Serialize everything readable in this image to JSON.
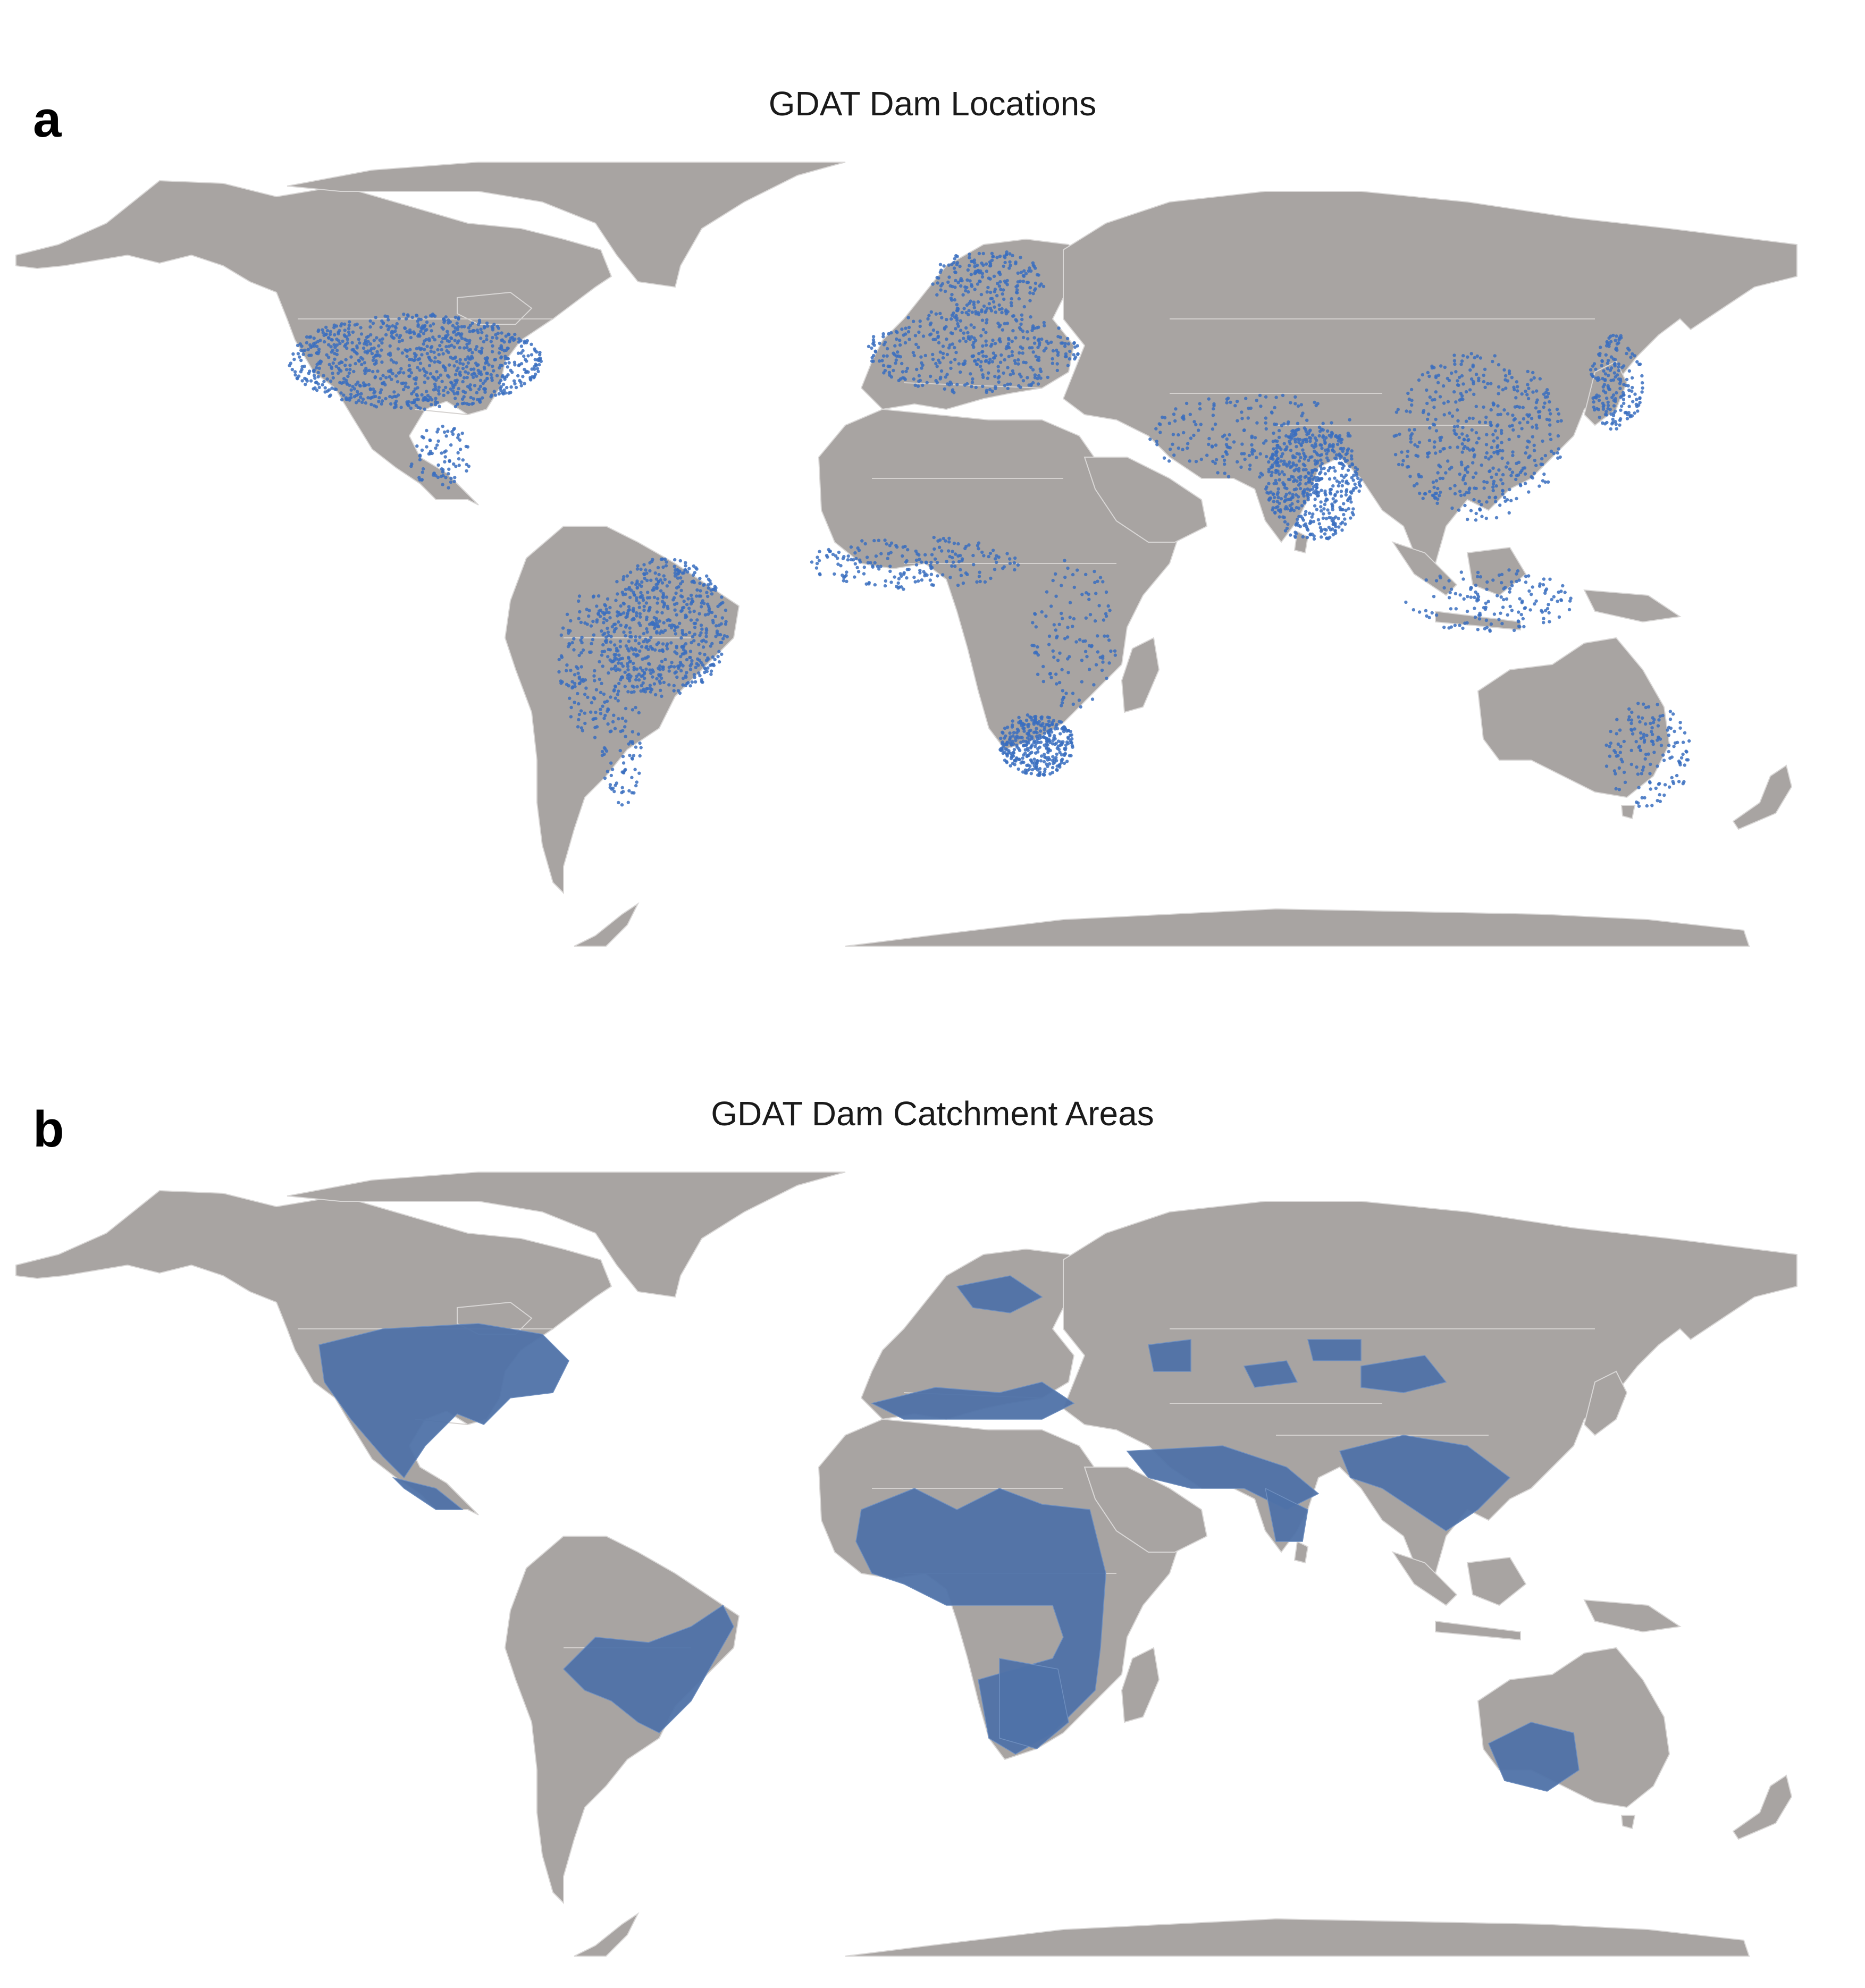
{
  "colors": {
    "land": "#a8a4a2",
    "ocean": "#ffffff",
    "dam_point": "#3a6ec0",
    "catchment": "#4f72a8",
    "border": "#d4d1cf"
  },
  "panels": [
    {
      "letter": "a",
      "title": "GDAT Dam Locations",
      "layer": "dam-locations",
      "symbol": "point"
    },
    {
      "letter": "b",
      "title": "GDAT Dam Catchment Areas",
      "layer": "catchment-areas",
      "symbol": "polygon"
    }
  ]
}
